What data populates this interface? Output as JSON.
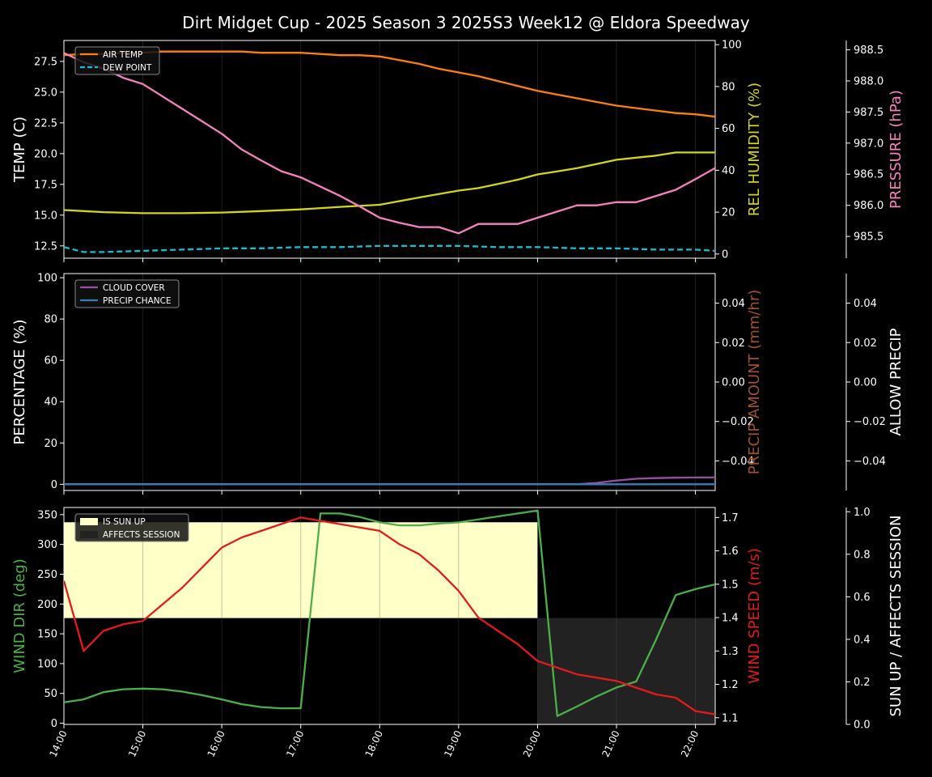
{
  "chart_data": {
    "title": "Dirt Midget Cup - 2025 Season 3 2025S3 Week12 @ Eldora Speedway",
    "x_ticks": [
      "14:00",
      "15:00",
      "16:00",
      "17:00",
      "18:00",
      "19:00",
      "20:00",
      "21:00",
      "22:00"
    ],
    "x_range": [
      14.0,
      22.25
    ],
    "panels": [
      {
        "id": "temp",
        "type": "line",
        "axes": {
          "left": {
            "label": "TEMP (C)",
            "range": [
              11.5,
              29.2
            ],
            "ticks": [
              "12.5",
              "15.0",
              "17.5",
              "20.0",
              "22.5",
              "25.0",
              "27.5"
            ],
            "color": "#ffffff"
          },
          "right1": {
            "label": "REL HUMIDITY (%)",
            "range": [
              -2,
              102
            ],
            "ticks": [
              "0",
              "20",
              "40",
              "60",
              "80",
              "100"
            ],
            "color": "#d4d41a"
          },
          "right2": {
            "label": "PRESSURE (hPa)",
            "range": [
              985.15,
              988.65
            ],
            "ticks": [
              "985.5",
              "986.0",
              "986.5",
              "987.0",
              "987.5",
              "988.0",
              "988.5"
            ],
            "color": "#f781bf"
          }
        },
        "legend": [
          "AIR TEMP",
          "DEW POINT"
        ],
        "series": [
          {
            "name": "AIR TEMP",
            "axis": "left",
            "color": "#ff7f0e",
            "dash": false,
            "x": [
              14.0,
              14.25,
              14.5,
              14.75,
              15.0,
              15.25,
              15.5,
              15.75,
              16.0,
              16.25,
              16.5,
              16.75,
              17.0,
              17.25,
              17.5,
              17.75,
              18.0,
              18.25,
              18.5,
              18.75,
              19.0,
              19.25,
              19.5,
              19.75,
              20.0,
              20.25,
              20.5,
              20.75,
              21.0,
              21.25,
              21.5,
              21.75,
              22.0,
              22.25
            ],
            "y": [
              28.0,
              28.1,
              28.1,
              28.2,
              28.2,
              28.3,
              28.3,
              28.3,
              28.3,
              28.3,
              28.2,
              28.2,
              28.2,
              28.1,
              28.0,
              28.0,
              27.9,
              27.6,
              27.3,
              26.9,
              26.6,
              26.3,
              25.9,
              25.5,
              25.1,
              24.8,
              24.5,
              24.2,
              23.9,
              23.7,
              23.5,
              23.3,
              23.2,
              23.0
            ]
          },
          {
            "name": "DEW POINT",
            "axis": "left",
            "color": "#17becf",
            "dash": true,
            "x": [
              14.0,
              14.25,
              14.5,
              15.0,
              15.5,
              16.0,
              16.5,
              17.0,
              17.5,
              18.0,
              18.5,
              19.0,
              19.5,
              20.0,
              20.5,
              21.0,
              21.5,
              22.0,
              22.25
            ],
            "y": [
              12.4,
              12.0,
              12.0,
              12.1,
              12.2,
              12.3,
              12.3,
              12.4,
              12.4,
              12.5,
              12.5,
              12.5,
              12.4,
              12.4,
              12.3,
              12.3,
              12.2,
              12.2,
              12.1
            ]
          },
          {
            "name": "REL HUMIDITY",
            "axis": "right1",
            "color": "#d4d41a",
            "dash": false,
            "x": [
              14.0,
              14.25,
              14.5,
              15.0,
              15.5,
              16.0,
              16.5,
              17.0,
              17.5,
              18.0,
              18.5,
              19.0,
              19.25,
              19.5,
              19.75,
              20.0,
              20.25,
              20.5,
              20.75,
              21.0,
              21.25,
              21.5,
              21.75,
              22.0,
              22.25
            ],
            "y": [
              21,
              20.5,
              20,
              19.5,
              19.5,
              19.8,
              20.5,
              21.3,
              22.5,
              23.5,
              27,
              30.3,
              31.5,
              33.5,
              35.5,
              38,
              39.5,
              41,
              43,
              45,
              46,
              47,
              48.5,
              48.5,
              48.5
            ]
          },
          {
            "name": "PRESSURE",
            "axis": "right2",
            "color": "#f781bf",
            "dash": false,
            "x": [
              14.0,
              14.25,
              14.5,
              14.75,
              15.0,
              15.25,
              15.5,
              15.75,
              16.0,
              16.25,
              16.5,
              16.75,
              17.0,
              17.25,
              17.5,
              17.75,
              18.0,
              18.25,
              18.5,
              18.75,
              19.0,
              19.25,
              19.5,
              19.75,
              20.0,
              20.25,
              20.5,
              20.75,
              21.0,
              21.25,
              21.5,
              21.75,
              22.0,
              22.25
            ],
            "y": [
              988.45,
              988.3,
              988.2,
              988.05,
              987.95,
              987.75,
              987.55,
              987.35,
              987.15,
              986.9,
              986.72,
              986.55,
              986.45,
              986.3,
              986.15,
              985.98,
              985.8,
              985.72,
              985.65,
              985.65,
              985.55,
              985.7,
              985.7,
              985.7,
              985.8,
              985.9,
              986.0,
              986.0,
              986.05,
              986.05,
              986.15,
              986.25,
              986.42,
              986.6
            ]
          }
        ]
      },
      {
        "id": "precip",
        "type": "line",
        "axes": {
          "left": {
            "label": "PERCENTAGE (%)",
            "range": [
              -3,
              102
            ],
            "ticks": [
              "0",
              "20",
              "40",
              "60",
              "80",
              "100"
            ],
            "color": "#ffffff"
          },
          "right1": {
            "label": "PRECIP AMOUNT (mm/hr)",
            "range": [
              -0.055,
              0.055
            ],
            "ticks": [
              "−0.04",
              "−0.02",
              "0.00",
              "0.02",
              "0.04"
            ],
            "color": "#a0522d"
          },
          "right2": {
            "label": "ALLOW PRECIP",
            "range": [
              -0.055,
              0.055
            ],
            "ticks": [
              "−0.04",
              "−0.02",
              "0.00",
              "0.02",
              "0.04"
            ],
            "color": "#ffffff"
          }
        },
        "legend": [
          "CLOUD COVER",
          "PRECIP CHANCE"
        ],
        "series": [
          {
            "name": "CLOUD COVER",
            "axis": "left",
            "color": "#984ea3",
            "dash": false,
            "x": [
              14.0,
              15.0,
              16.0,
              17.0,
              18.0,
              19.0,
              20.0,
              20.5,
              20.75,
              21.0,
              21.25,
              21.5,
              21.75,
              22.0,
              22.25
            ],
            "y": [
              0,
              0,
              0,
              0,
              0,
              0,
              0,
              0,
              0.7,
              1.8,
              2.7,
              3.0,
              3.2,
              3.3,
              3.3
            ]
          },
          {
            "name": "PRECIP CHANCE",
            "axis": "left",
            "color": "#377eb8",
            "dash": false,
            "x": [
              14.0,
              22.25
            ],
            "y": [
              0,
              0
            ]
          }
        ]
      },
      {
        "id": "wind",
        "type": "line",
        "axes": {
          "left": {
            "label": "WIND DIR (deg)",
            "range": [
              -2,
              362
            ],
            "ticks": [
              "0",
              "50",
              "100",
              "150",
              "200",
              "250",
              "300",
              "350"
            ],
            "color": "#4daf4a"
          },
          "right1": {
            "label": "WIND SPEED (m/s)",
            "range": [
              1.08,
              1.73
            ],
            "ticks": [
              "1.1",
              "1.2",
              "1.3",
              "1.4",
              "1.5",
              "1.6",
              "1.7"
            ],
            "color": "#e41a1c"
          },
          "right2": {
            "label": "SUN UP / AFFECTS SESSION",
            "range": [
              0,
              1.02
            ],
            "ticks": [
              "0.0",
              "0.2",
              "0.4",
              "0.6",
              "0.8",
              "1.0"
            ],
            "color": "#ffffff"
          }
        },
        "legend": [
          "IS SUN UP",
          "AFFECTS SESSION"
        ],
        "sun_up": {
          "x": [
            14.0,
            20.0
          ],
          "value": 1.0,
          "color": "#ffffc8"
        },
        "affects_session": {
          "x": [
            20.0,
            22.25
          ],
          "value": 0.5,
          "color": "#222222"
        },
        "series": [
          {
            "name": "WIND DIR",
            "axis": "left",
            "color": "#4daf4a",
            "dash": false,
            "x": [
              14.0,
              14.25,
              14.5,
              14.75,
              15.0,
              15.25,
              15.5,
              15.75,
              16.0,
              16.25,
              16.5,
              16.75,
              17.0,
              17.25,
              17.5,
              17.75,
              18.0,
              18.25,
              18.5,
              18.75,
              19.0,
              19.25,
              19.5,
              19.75,
              20.0,
              20.25,
              20.5,
              20.75,
              21.0,
              21.25,
              21.5,
              21.75,
              22.0,
              22.25
            ],
            "y": [
              35,
              40,
              52,
              57,
              58,
              57,
              53,
              47,
              40,
              32,
              27,
              25,
              25,
              352,
              352,
              346,
              337,
              332,
              332,
              335,
              337,
              342,
              347,
              352,
              357,
              12,
              28,
              45,
              60,
              70,
              140,
              215,
              225,
              233
            ]
          },
          {
            "name": "WIND SPEED",
            "axis": "right1",
            "color": "#e41a1c",
            "dash": false,
            "x": [
              14.0,
              14.25,
              14.5,
              14.75,
              15.0,
              15.25,
              15.5,
              15.75,
              16.0,
              16.25,
              16.5,
              16.75,
              17.0,
              17.25,
              17.5,
              17.75,
              18.0,
              18.25,
              18.5,
              18.75,
              19.0,
              19.25,
              19.5,
              19.75,
              20.0,
              20.25,
              20.5,
              20.75,
              21.0,
              21.25,
              21.5,
              21.75,
              22.0,
              22.25
            ],
            "y": [
              1.51,
              1.3,
              1.36,
              1.38,
              1.39,
              1.44,
              1.49,
              1.55,
              1.61,
              1.64,
              1.66,
              1.68,
              1.7,
              1.69,
              1.68,
              1.67,
              1.66,
              1.62,
              1.59,
              1.54,
              1.48,
              1.4,
              1.36,
              1.32,
              1.27,
              1.25,
              1.23,
              1.22,
              1.21,
              1.19,
              1.17,
              1.16,
              1.12,
              1.11
            ]
          }
        ]
      }
    ]
  }
}
